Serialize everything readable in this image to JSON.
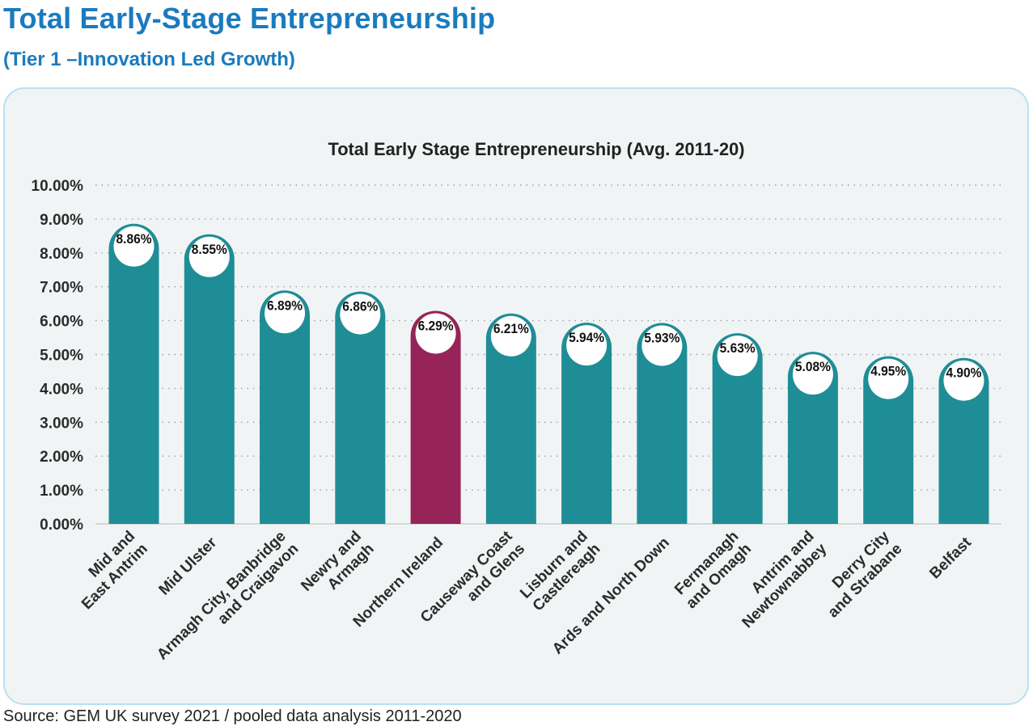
{
  "page": {
    "title": "Total Early-Stage Entrepreneurship",
    "subtitle": "(Tier 1 –Innovation Led Growth)",
    "source_note": "Source: GEM UK survey 2021 / pooled data analysis 2011-2020"
  },
  "colors": {
    "bar_default": "#1f8d96",
    "bar_highlight": "#962458",
    "label_circle_fill": "#ffffff",
    "title_blue": "#1a7bbf",
    "panel_background": "#f1f4f5",
    "panel_border": "#b9dff2"
  },
  "chart_data": {
    "type": "bar",
    "title": "Total Early Stage Entrepreneurship (Avg. 2011-20)",
    "xlabel": "",
    "ylabel": "",
    "ylim": [
      0,
      10
    ],
    "y_ticks": [
      "0.00%",
      "1.00%",
      "2.00%",
      "3.00%",
      "4.00%",
      "5.00%",
      "6.00%",
      "7.00%",
      "8.00%",
      "9.00%",
      "10.00%"
    ],
    "grid": true,
    "legend": "none",
    "categories": [
      [
        "Mid and",
        "East Antrim"
      ],
      [
        "Mid Ulster"
      ],
      [
        "Armagh City, Banbridge",
        "and Craigavon"
      ],
      [
        "Newry and",
        "Armagh"
      ],
      [
        "Northern Ireland"
      ],
      [
        "Causeway Coast",
        "and Glens"
      ],
      [
        "Lisburn and",
        "Castlereagh"
      ],
      [
        "Ards and North Down"
      ],
      [
        "Fermanagh",
        "and Omagh"
      ],
      [
        "Antrim and",
        "Newtownabbey"
      ],
      [
        "Derry City",
        "and Strabane"
      ],
      [
        "Belfast"
      ]
    ],
    "values": [
      8.86,
      8.55,
      6.89,
      6.86,
      6.29,
      6.21,
      5.94,
      5.93,
      5.63,
      5.08,
      4.95,
      4.9
    ],
    "value_labels": [
      "8.86%",
      "8.55%",
      "6.89%",
      "6.86%",
      "6.29%",
      "6.21%",
      "5.94%",
      "5.93%",
      "5.63%",
      "5.08%",
      "4.95%",
      "4.90%"
    ],
    "highlight_index": 4
  }
}
